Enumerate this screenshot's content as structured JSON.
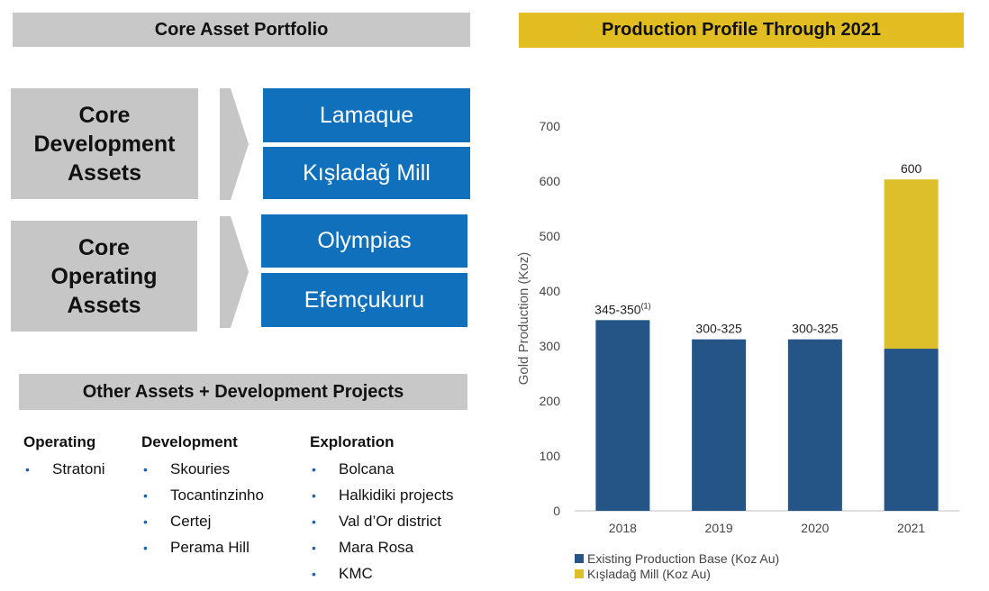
{
  "left_panel": {
    "header": "Core Asset Portfolio",
    "groups": [
      {
        "label_lines": [
          "Core",
          "Development",
          "Assets"
        ],
        "assets": [
          "Lamaque",
          "Kışladağ Mill"
        ]
      },
      {
        "label_lines": [
          "Core",
          "Operating",
          "Assets"
        ],
        "assets": [
          "Olympias",
          "Efemçukuru"
        ]
      }
    ],
    "other_header": "Other Assets + Development Projects",
    "columns": [
      {
        "title": "Operating",
        "items": [
          "Stratoni"
        ]
      },
      {
        "title": "Development",
        "items": [
          "Skouries",
          "Tocantinzinho",
          "Certej",
          "Perama Hill"
        ]
      },
      {
        "title": "Exploration",
        "items": [
          "Bolcana",
          "Halkidiki projects",
          "Val d’Or district",
          "Mara Rosa",
          "KMC"
        ]
      }
    ]
  },
  "colors": {
    "grey": "#c6c6c6",
    "blue_box": "#1070bb",
    "gold": "#e2bd22",
    "bar_blue": "#255487",
    "bar_gold": "#dcbf2b",
    "bullet_blue": "#1f63a8"
  },
  "chart_data": {
    "type": "bar",
    "stacked": true,
    "title": "Production Profile Through 2021",
    "xlabel": "",
    "ylabel": "Gold Production (Koz)",
    "ylim": [
      0,
      700
    ],
    "yticks": [
      0,
      100,
      200,
      300,
      400,
      500,
      600,
      700
    ],
    "grid": false,
    "legend_position": "bottom-left",
    "categories": [
      "2018",
      "2019",
      "2020",
      "2021"
    ],
    "series": [
      {
        "name": "Existing Production Base (Koz Au)",
        "values": [
          347,
          312,
          312,
          295
        ]
      },
      {
        "name": "Kışladağ Mill (Koz Au)",
        "values": [
          0,
          0,
          0,
          308
        ]
      }
    ],
    "data_labels": [
      "345-350",
      "300-325",
      "300-325",
      "600"
    ],
    "data_label_superscripts": [
      "(1)",
      "",
      "",
      ""
    ]
  }
}
